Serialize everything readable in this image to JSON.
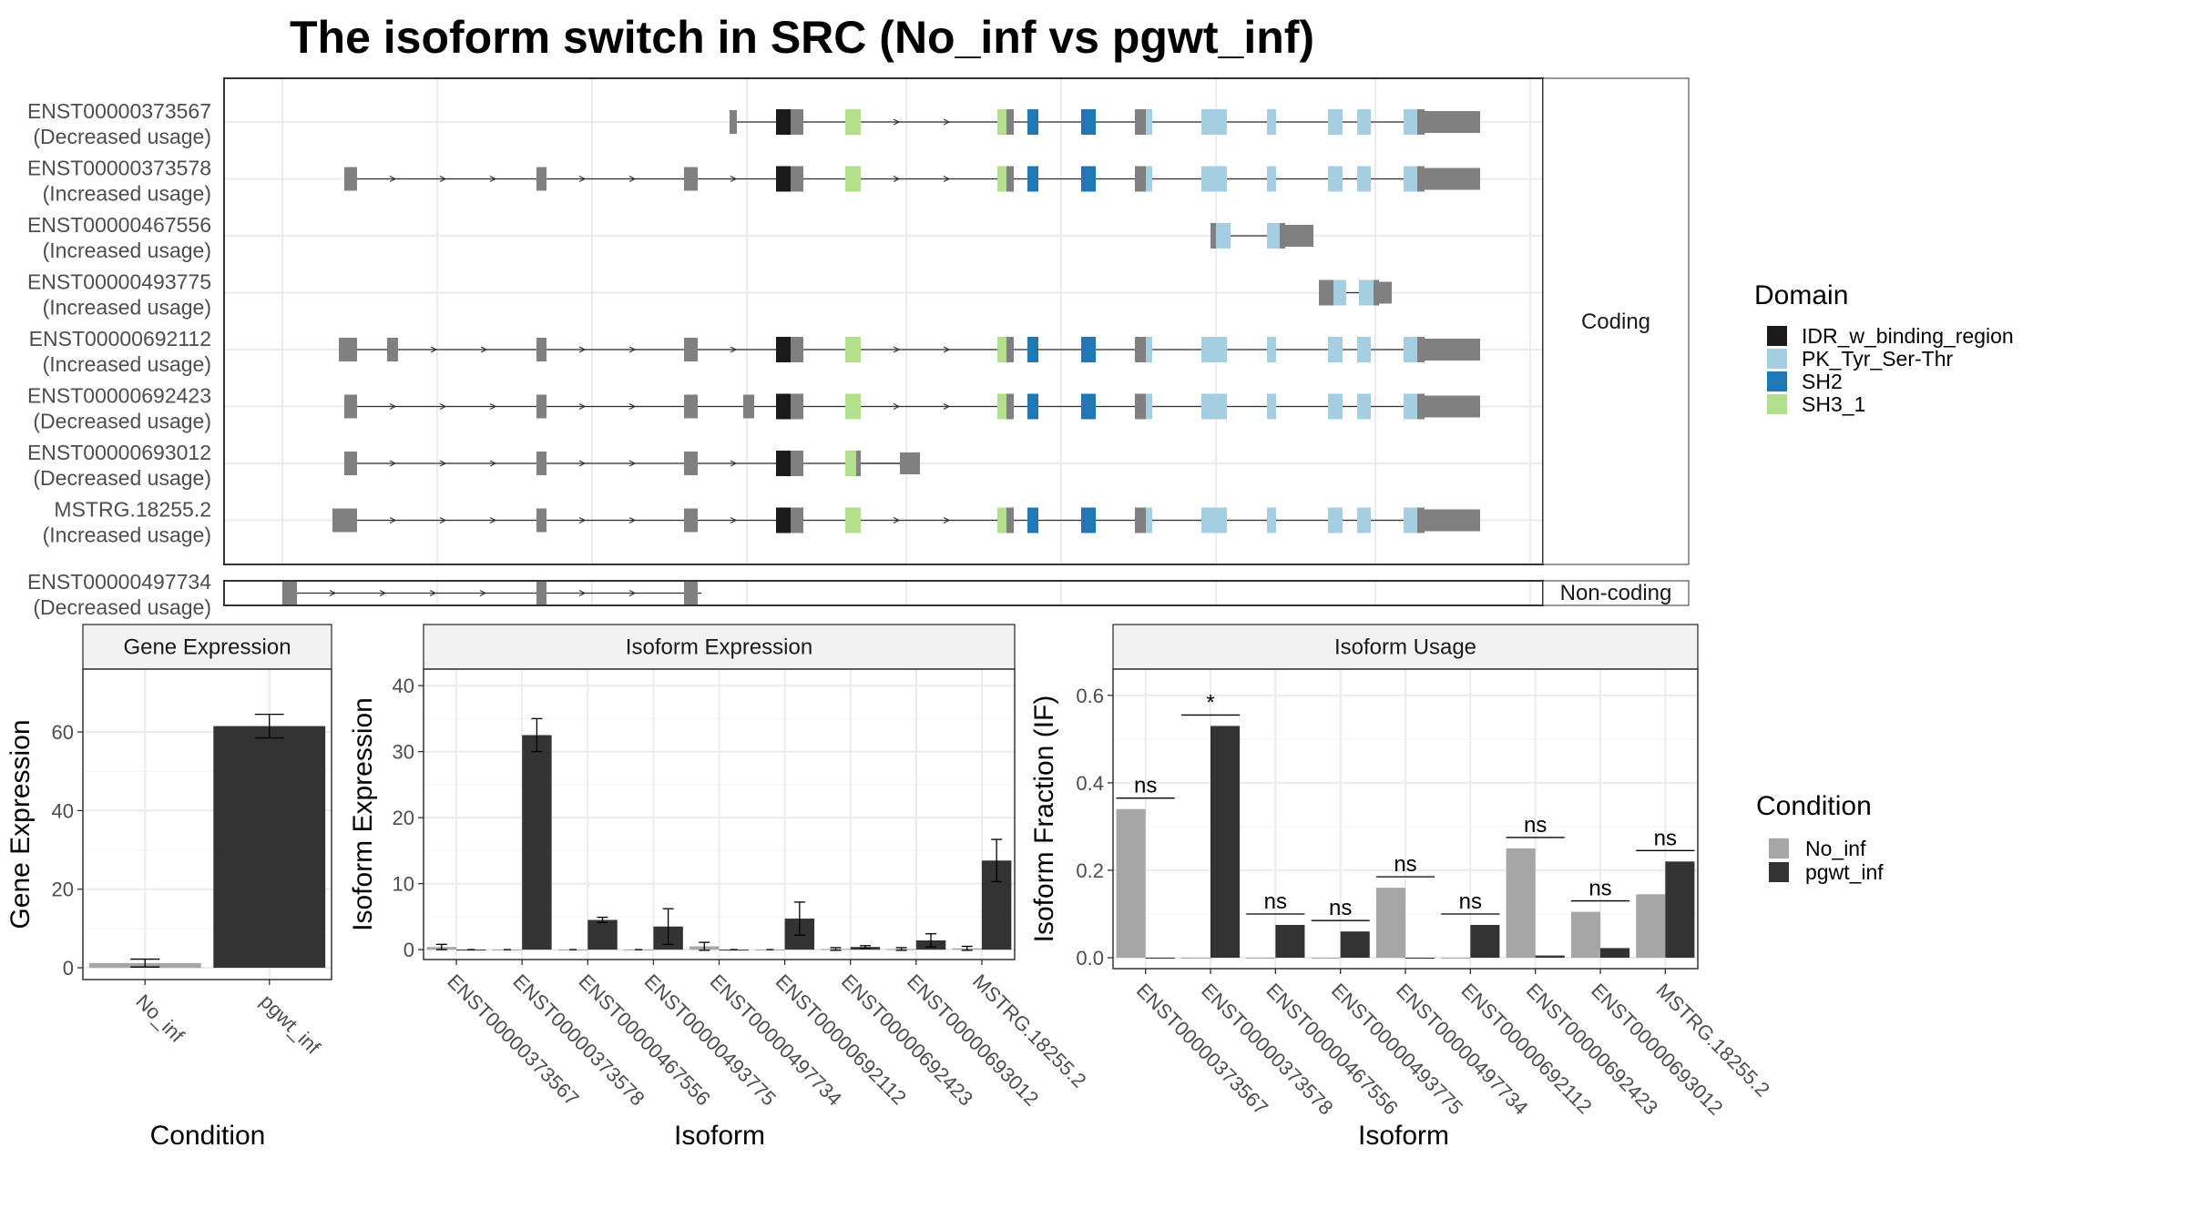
{
  "title": "The isoform switch in SRC (No_inf vs pgwt_inf)",
  "colors": {
    "domains": {
      "IDR_w_binding_region": "#1a1a1a",
      "PK_Tyr_Ser-Thr": "#a6cee3",
      "SH2": "#1f78b4",
      "SH3_1": "#b2df8a"
    },
    "exon": "#808080",
    "no_inf": "#a6a6a6",
    "pgwt_inf": "#333333",
    "grid": "#ebebeb",
    "strip_bg": "#f2f2f2"
  },
  "structure": {
    "coding_label": "Coding",
    "noncoding_label": "Non-coding",
    "isoforms": [
      {
        "id": "ENST00000373567",
        "usage": "(Decreased usage)"
      },
      {
        "id": "ENST00000373578",
        "usage": "(Increased usage)"
      },
      {
        "id": "ENST00000467556",
        "usage": "(Increased usage)"
      },
      {
        "id": "ENST00000493775",
        "usage": "(Increased usage)"
      },
      {
        "id": "ENST00000692112",
        "usage": "(Increased usage)"
      },
      {
        "id": "ENST00000692423",
        "usage": "(Decreased usage)"
      },
      {
        "id": "ENST00000693012",
        "usage": "(Decreased usage)"
      },
      {
        "id": "MSTRG.18255.2",
        "usage": "(Increased usage)"
      }
    ],
    "noncoding_isoform": {
      "id": "ENST00000497734",
      "usage": "(Decreased usage)"
    }
  },
  "legend_domain": {
    "title": "Domain",
    "items": [
      {
        "label": "IDR_w_binding_region",
        "color": "#1a1a1a"
      },
      {
        "label": "PK_Tyr_Ser-Thr",
        "color": "#a6cee3"
      },
      {
        "label": "SH2",
        "color": "#1f78b4"
      },
      {
        "label": "SH3_1",
        "color": "#b2df8a"
      }
    ]
  },
  "legend_condition": {
    "title": "Condition",
    "items": [
      {
        "label": "No_inf",
        "color": "#a6a6a6"
      },
      {
        "label": "pgwt_inf",
        "color": "#333333"
      }
    ]
  },
  "chart_data": [
    {
      "type": "bar",
      "title": "Gene Expression",
      "xlabel": "Condition",
      "ylabel": "Gene Expression",
      "categories": [
        "No_inf",
        "pgwt_inf"
      ],
      "values": [
        1.2,
        61.5
      ],
      "errors": [
        1.0,
        3.0
      ],
      "ylim": [
        -3,
        76
      ],
      "yticks": [
        0,
        20,
        40,
        60
      ]
    },
    {
      "type": "bar",
      "title": "Isoform Expression",
      "xlabel": "Isoform",
      "ylabel": "Isoform Expression",
      "categories": [
        "ENST00000373567",
        "ENST00000373578",
        "ENST00000467556",
        "ENST00000493775",
        "ENST00000497734",
        "ENST00000692112",
        "ENST00000692423",
        "ENST00000693012",
        "MSTRG.18255.2"
      ],
      "series": [
        {
          "name": "No_inf",
          "values": [
            0.4,
            0.0,
            0.0,
            0.0,
            0.5,
            0.0,
            0.1,
            0.1,
            0.2
          ],
          "errors": [
            0.4,
            0.0,
            0.0,
            0.0,
            0.6,
            0.0,
            0.2,
            0.2,
            0.3
          ]
        },
        {
          "name": "pgwt_inf",
          "values": [
            0.0,
            32.5,
            4.5,
            3.5,
            0.0,
            4.7,
            0.4,
            1.4,
            13.5
          ],
          "errors": [
            0.0,
            2.5,
            0.4,
            2.7,
            0.0,
            2.5,
            0.2,
            1.0,
            3.2
          ]
        }
      ],
      "ylim": [
        -1.5,
        42.5
      ],
      "yticks": [
        0,
        10,
        20,
        30,
        40
      ]
    },
    {
      "type": "bar",
      "title": "Isoform Usage",
      "xlabel": "Isoform",
      "ylabel": "Isoform Fraction (IF)",
      "categories": [
        "ENST00000373567",
        "ENST00000373578",
        "ENST00000467556",
        "ENST00000493775",
        "ENST00000497734",
        "ENST00000692112",
        "ENST00000692423",
        "ENST00000693012",
        "MSTRG.18255.2"
      ],
      "series": [
        {
          "name": "No_inf",
          "values": [
            0.34,
            0.0,
            0.0,
            0.0,
            0.16,
            0.0,
            0.25,
            0.105,
            0.145
          ]
        },
        {
          "name": "pgwt_inf",
          "values": [
            0.0,
            0.53,
            0.075,
            0.06,
            0.0,
            0.075,
            0.005,
            0.022,
            0.22
          ]
        }
      ],
      "significance": [
        "ns",
        "*",
        "ns",
        "ns",
        "ns",
        "ns",
        "ns",
        "ns",
        "ns"
      ],
      "ylim": [
        -0.025,
        0.66
      ],
      "yticks": [
        "0.0",
        "0.2",
        "0.4",
        "0.6"
      ]
    }
  ]
}
